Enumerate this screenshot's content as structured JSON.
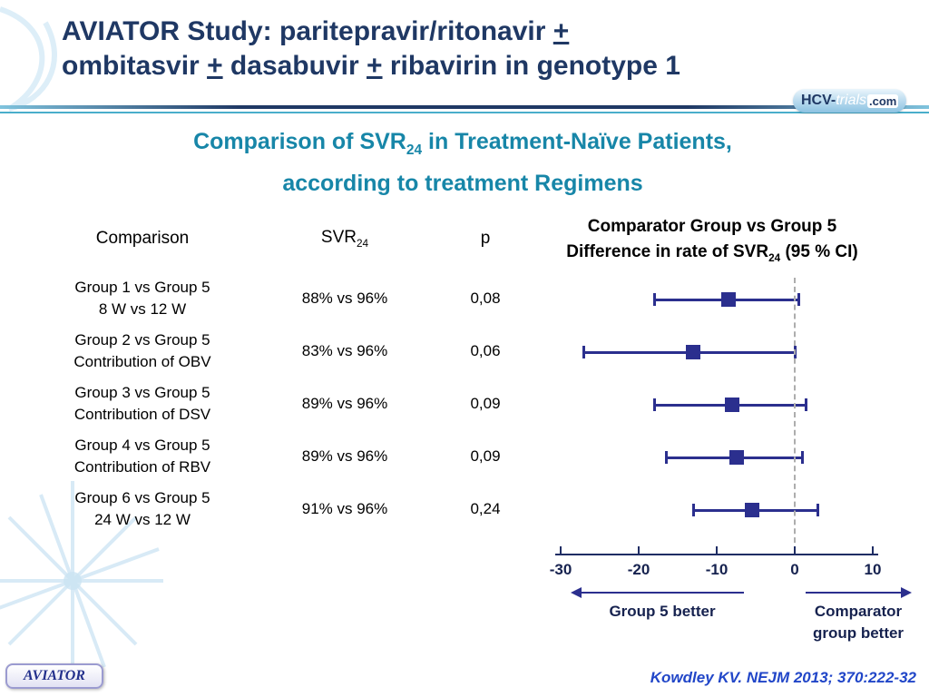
{
  "slide": {
    "title": {
      "line1_text": "AVIATOR Study: paritepravir/ritonavir ",
      "line1_plus": "+",
      "line2_seg1": "ombitasvir ",
      "line2_plus1": "+",
      "line2_seg2": " dasabuvir ",
      "line2_plus2": "+",
      "line2_seg3": " ribavirin in genotype 1"
    },
    "logo": {
      "hcv": "HCV-",
      "trials": "trials",
      "com": ".com"
    },
    "subtitle": {
      "line1_pre": "Comparison of SVR",
      "line1_sub": "24",
      "line1_post": " in Treatment-Naïve Patients,",
      "line2": "according to treatment Regimens"
    },
    "table": {
      "headers": {
        "comparison": "Comparison",
        "svr": "SVR",
        "svr_sub": "24",
        "p": "p"
      },
      "rows": [
        {
          "line1": "Group 1 vs Group 5",
          "line2": "8 W vs 12 W",
          "svr": "88% vs 96%",
          "p": "0,08"
        },
        {
          "line1": "Group 2 vs Group 5",
          "line2": "Contribution of OBV",
          "svr": "83% vs 96%",
          "p": "0,06"
        },
        {
          "line1": "Group 3 vs Group 5",
          "line2": "Contribution of DSV",
          "svr": "89% vs 96%",
          "p": "0,09"
        },
        {
          "line1": "Group 4 vs Group 5",
          "line2": "Contribution of RBV",
          "svr": "89% vs 96%",
          "p": "0,09"
        },
        {
          "line1": "Group 6 vs Group 5",
          "line2": "24 W vs 12 W",
          "svr": "91% vs 96%",
          "p": "0,24"
        }
      ]
    },
    "plot": {
      "header_line1": "Comparator Group vs Group 5",
      "header_line2_pre": "Difference in rate of SVR",
      "header_line2_sub": "24",
      "header_line2_post": " (95 % CI)",
      "left_arrow_label": "Group 5 better",
      "right_arrow_label_line1": "Comparator",
      "right_arrow_label_line2": "group better"
    },
    "footer": {
      "badge": "AVIATOR",
      "reference": "Kowdley KV. NEJM 2013; 370:222-32"
    },
    "colors": {
      "title_navy": "#1F3864",
      "subtitle_teal": "#1786A8",
      "plot_navy": "#2B2F8E",
      "axis_navy": "#16224F",
      "divider_teal": "#49AECB",
      "reference_blue": "#2146C8"
    }
  },
  "chart_data": {
    "type": "scatter",
    "subtype": "forest-plot",
    "title": "Comparator Group vs Group 5 — Difference in rate of SVR24 (95 % CI)",
    "xlabel": "Difference in rate of SVR24 (percentage points)",
    "xlim": [
      -30,
      10
    ],
    "x_ticks": [
      -30,
      -20,
      -10,
      0,
      10
    ],
    "reference_line": 0,
    "grid": false,
    "legend": "none",
    "series": [
      {
        "name": "Group 1 vs Group 5 (8 W vs 12 W)",
        "estimate": -8.5,
        "ci_low": -18,
        "ci_high": 0.5,
        "svr": "88% vs 96%",
        "p": "0,08"
      },
      {
        "name": "Group 2 vs Group 5 (Contribution of OBV)",
        "estimate": -13,
        "ci_low": -27,
        "ci_high": 0,
        "svr": "83% vs 96%",
        "p": "0,06"
      },
      {
        "name": "Group 3 vs Group 5 (Contribution of DSV)",
        "estimate": -8,
        "ci_low": -18,
        "ci_high": 1.5,
        "svr": "89% vs 96%",
        "p": "0,09"
      },
      {
        "name": "Group 4 vs Group 5 (Contribution of RBV)",
        "estimate": -7.5,
        "ci_low": -16.5,
        "ci_high": 1,
        "svr": "89% vs 96%",
        "p": "0,09"
      },
      {
        "name": "Group 6 vs Group 5 (24 W vs 12 W)",
        "estimate": -5.5,
        "ci_low": -13,
        "ci_high": 3,
        "svr": "91% vs 96%",
        "p": "0,24"
      }
    ],
    "annotations": [
      "Group 5 better",
      "Comparator group better"
    ]
  }
}
